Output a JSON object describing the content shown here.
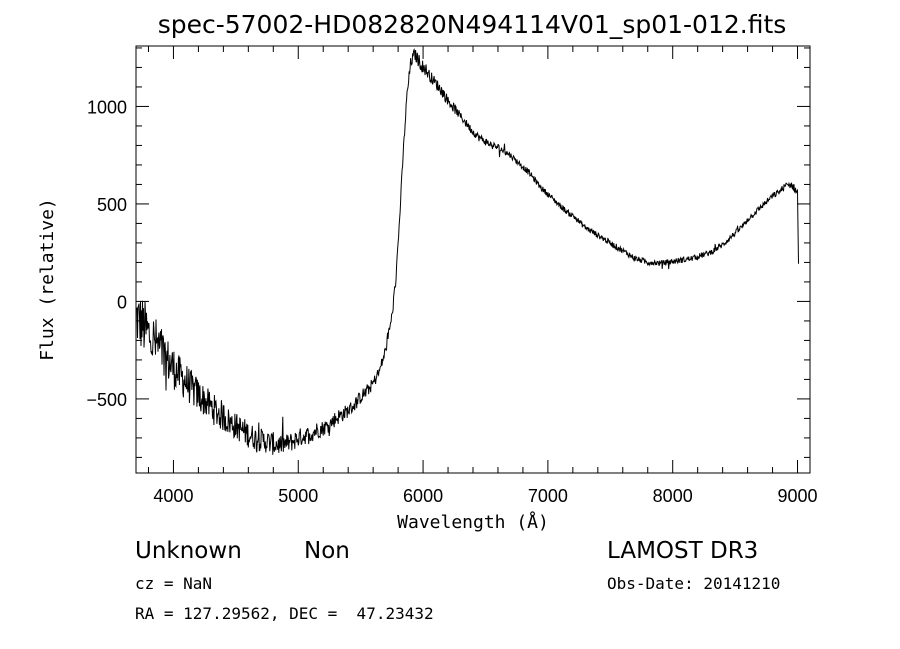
{
  "chart_data": {
    "type": "line",
    "title": "spec-57002-HD082820N494114V01_sp01-012.fits",
    "xlabel": "Wavelength (Å)",
    "ylabel": "Flux (relative)",
    "xlim": [
      3700,
      9100
    ],
    "ylim": [
      -880,
      1310
    ],
    "x_ticks": [
      4000,
      5000,
      6000,
      7000,
      8000,
      9000
    ],
    "y_ticks": [
      -500,
      0,
      500,
      1000
    ],
    "x_tick_labels": [
      "4000",
      "5000",
      "6000",
      "7000",
      "8000",
      "9000"
    ],
    "y_tick_labels": [
      "−500",
      "0",
      "500",
      "1000"
    ],
    "series": [
      {
        "name": "flux",
        "x": [
          3700,
          3750,
          3800,
          3850,
          3900,
          3950,
          4000,
          4050,
          4100,
          4150,
          4200,
          4250,
          4300,
          4350,
          4400,
          4450,
          4500,
          4550,
          4600,
          4650,
          4700,
          4750,
          4800,
          4850,
          4900,
          4950,
          5000,
          5050,
          5100,
          5150,
          5200,
          5250,
          5300,
          5350,
          5400,
          5450,
          5500,
          5550,
          5600,
          5650,
          5700,
          5750,
          5780,
          5810,
          5840,
          5870,
          5900,
          5930,
          5960,
          5990,
          6020,
          6050,
          6100,
          6150,
          6200,
          6250,
          6300,
          6350,
          6400,
          6450,
          6500,
          6550,
          6600,
          6650,
          6700,
          6750,
          6800,
          6850,
          6900,
          6950,
          7000,
          7050,
          7100,
          7150,
          7200,
          7250,
          7300,
          7350,
          7400,
          7450,
          7500,
          7550,
          7600,
          7650,
          7700,
          7750,
          7800,
          7850,
          7900,
          7950,
          8000,
          8050,
          8100,
          8150,
          8200,
          8250,
          8300,
          8350,
          8400,
          8450,
          8500,
          8550,
          8600,
          8650,
          8700,
          8750,
          8800,
          8850,
          8900,
          8950,
          9000,
          9010
        ],
        "y": [
          -80,
          -120,
          -170,
          -210,
          -250,
          -300,
          -340,
          -380,
          -410,
          -450,
          -480,
          -510,
          -540,
          -570,
          -590,
          -620,
          -640,
          -660,
          -680,
          -700,
          -710,
          -720,
          -730,
          -735,
          -730,
          -720,
          -700,
          -690,
          -680,
          -660,
          -650,
          -630,
          -600,
          -580,
          -560,
          -530,
          -490,
          -460,
          -420,
          -360,
          -250,
          -80,
          100,
          400,
          750,
          1050,
          1220,
          1270,
          1240,
          1210,
          1190,
          1160,
          1120,
          1080,
          1030,
          990,
          950,
          910,
          870,
          840,
          820,
          800,
          790,
          770,
          750,
          720,
          690,
          660,
          620,
          580,
          550,
          520,
          490,
          460,
          440,
          410,
          380,
          360,
          340,
          320,
          300,
          280,
          260,
          240,
          220,
          210,
          200,
          200,
          195,
          200,
          205,
          210,
          215,
          220,
          230,
          240,
          250,
          270,
          290,
          320,
          350,
          380,
          420,
          450,
          480,
          510,
          540,
          560,
          590,
          600,
          560,
          100
        ],
        "noise": [
          150,
          150,
          150,
          140,
          130,
          120,
          110,
          100,
          100,
          90,
          90,
          80,
          80,
          80,
          80,
          70,
          70,
          70,
          70,
          60,
          60,
          60,
          60,
          55,
          50,
          50,
          50,
          45,
          45,
          45,
          40,
          40,
          40,
          40,
          35,
          35,
          35,
          35,
          30,
          30,
          30,
          30,
          25,
          25,
          25,
          30,
          30,
          30,
          35,
          35,
          35,
          30,
          30,
          30,
          25,
          25,
          20,
          20,
          20,
          20,
          20,
          20,
          20,
          20,
          15,
          15,
          15,
          15,
          15,
          15,
          15,
          15,
          15,
          15,
          15,
          15,
          15,
          15,
          15,
          15,
          15,
          15,
          15,
          15,
          15,
          15,
          15,
          15,
          15,
          15,
          15,
          15,
          15,
          15,
          15,
          15,
          15,
          15,
          15,
          15,
          15,
          15,
          15,
          15,
          15,
          15,
          15,
          15,
          20,
          20,
          20,
          0
        ]
      }
    ]
  },
  "labels": {
    "object_class": "Unknown",
    "subclass": "Non",
    "survey": "LAMOST DR3",
    "cz": "cz = NaN",
    "obs_date": "Obs-Date: 20141210",
    "coords": "RA = 127.29562, DEC =  47.23432"
  }
}
